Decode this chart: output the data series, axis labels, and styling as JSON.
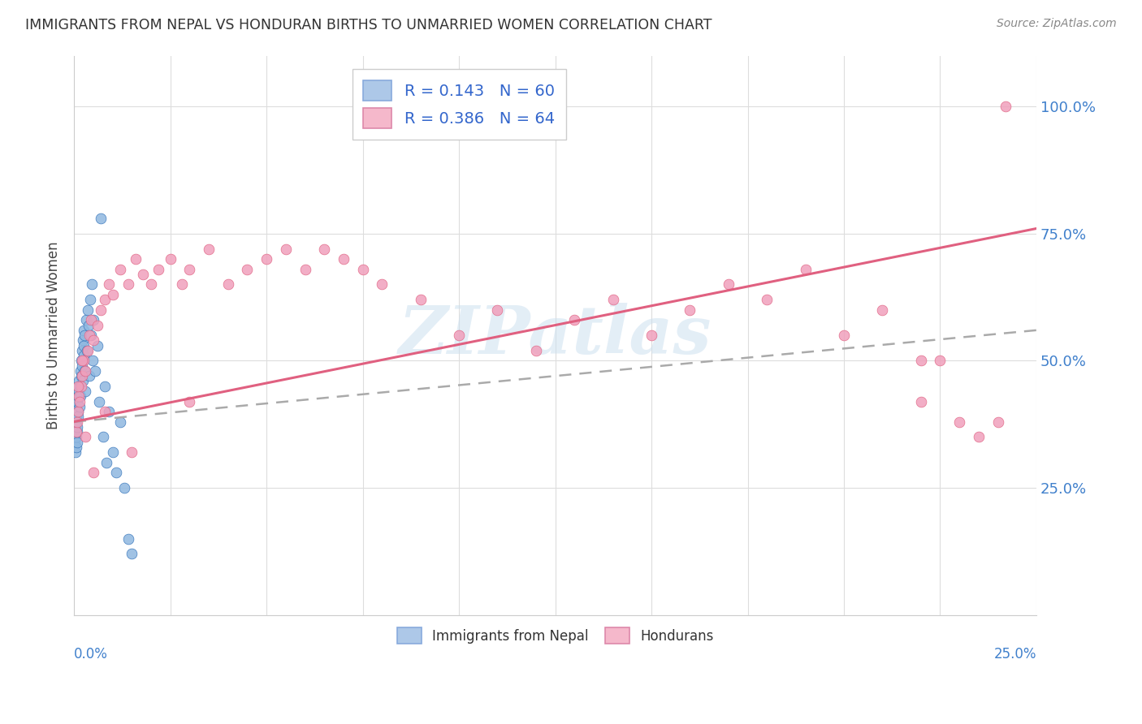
{
  "title": "IMMIGRANTS FROM NEPAL VS HONDURAN BIRTHS TO UNMARRIED WOMEN CORRELATION CHART",
  "source": "Source: ZipAtlas.com",
  "ylabel": "Births to Unmarried Women",
  "legend1_label": "R = 0.143   N = 60",
  "legend2_label": "R = 0.386   N = 64",
  "legend1_color": "#adc8e8",
  "legend2_color": "#f5b8cb",
  "dot_color_blue": "#90b8e0",
  "dot_color_pink": "#f0a0bc",
  "line_color_blue": "#3070b8",
  "line_color_pink": "#e06080",
  "dash_color": "#aaaaaa",
  "watermark": "ZIPatlas",
  "xlim": [
    0.0,
    0.25
  ],
  "ylim": [
    0.0,
    1.1
  ],
  "background_color": "#ffffff",
  "grid_color": "#dddddd",
  "nepal_x": [
    0.0002,
    0.00025,
    0.0003,
    0.00035,
    0.0004,
    0.00045,
    0.0005,
    0.00055,
    0.0006,
    0.00065,
    0.0007,
    0.00075,
    0.0008,
    0.00085,
    0.0009,
    0.00095,
    0.001,
    0.0011,
    0.0012,
    0.0013,
    0.0014,
    0.0015,
    0.0016,
    0.0017,
    0.0018,
    0.0019,
    0.002,
    0.0021,
    0.0022,
    0.0023,
    0.0024,
    0.0025,
    0.0026,
    0.0027,
    0.0028,
    0.003,
    0.0032,
    0.0034,
    0.0036,
    0.0038,
    0.004,
    0.0042,
    0.0044,
    0.0046,
    0.0048,
    0.005,
    0.0055,
    0.006,
    0.0065,
    0.007,
    0.0075,
    0.008,
    0.0085,
    0.009,
    0.01,
    0.011,
    0.012,
    0.013,
    0.014,
    0.015
  ],
  "nepal_y": [
    0.36,
    0.34,
    0.38,
    0.32,
    0.4,
    0.37,
    0.33,
    0.39,
    0.35,
    0.41,
    0.38,
    0.36,
    0.42,
    0.34,
    0.37,
    0.4,
    0.43,
    0.39,
    0.44,
    0.46,
    0.41,
    0.45,
    0.48,
    0.43,
    0.5,
    0.47,
    0.52,
    0.49,
    0.54,
    0.46,
    0.53,
    0.51,
    0.56,
    0.48,
    0.55,
    0.44,
    0.58,
    0.52,
    0.6,
    0.57,
    0.47,
    0.62,
    0.55,
    0.65,
    0.5,
    0.58,
    0.48,
    0.53,
    0.42,
    0.78,
    0.35,
    0.45,
    0.3,
    0.4,
    0.32,
    0.28,
    0.38,
    0.25,
    0.15,
    0.12
  ],
  "honduran_x": [
    0.0005,
    0.0008,
    0.001,
    0.0012,
    0.0015,
    0.0018,
    0.002,
    0.0025,
    0.003,
    0.0035,
    0.004,
    0.0045,
    0.005,
    0.006,
    0.007,
    0.008,
    0.009,
    0.01,
    0.012,
    0.014,
    0.016,
    0.018,
    0.02,
    0.022,
    0.025,
    0.028,
    0.03,
    0.035,
    0.04,
    0.045,
    0.05,
    0.055,
    0.06,
    0.065,
    0.07,
    0.075,
    0.08,
    0.09,
    0.1,
    0.11,
    0.12,
    0.13,
    0.14,
    0.15,
    0.16,
    0.17,
    0.18,
    0.19,
    0.2,
    0.21,
    0.22,
    0.225,
    0.23,
    0.235,
    0.24,
    0.242,
    0.001,
    0.002,
    0.003,
    0.005,
    0.008,
    0.015,
    0.03,
    0.22
  ],
  "honduran_y": [
    0.36,
    0.38,
    0.4,
    0.43,
    0.42,
    0.45,
    0.47,
    0.5,
    0.48,
    0.52,
    0.55,
    0.58,
    0.54,
    0.57,
    0.6,
    0.62,
    0.65,
    0.63,
    0.68,
    0.65,
    0.7,
    0.67,
    0.65,
    0.68,
    0.7,
    0.65,
    0.68,
    0.72,
    0.65,
    0.68,
    0.7,
    0.72,
    0.68,
    0.72,
    0.7,
    0.68,
    0.65,
    0.62,
    0.55,
    0.6,
    0.52,
    0.58,
    0.62,
    0.55,
    0.6,
    0.65,
    0.62,
    0.68,
    0.55,
    0.6,
    0.42,
    0.5,
    0.38,
    0.35,
    0.38,
    1.0,
    0.45,
    0.5,
    0.35,
    0.28,
    0.4,
    0.32,
    0.42,
    0.5
  ],
  "nepal_line_x": [
    0.0,
    0.25
  ],
  "nepal_line_y": [
    0.38,
    0.56
  ],
  "honduran_line_x": [
    0.0,
    0.25
  ],
  "honduran_line_y": [
    0.38,
    0.76
  ]
}
